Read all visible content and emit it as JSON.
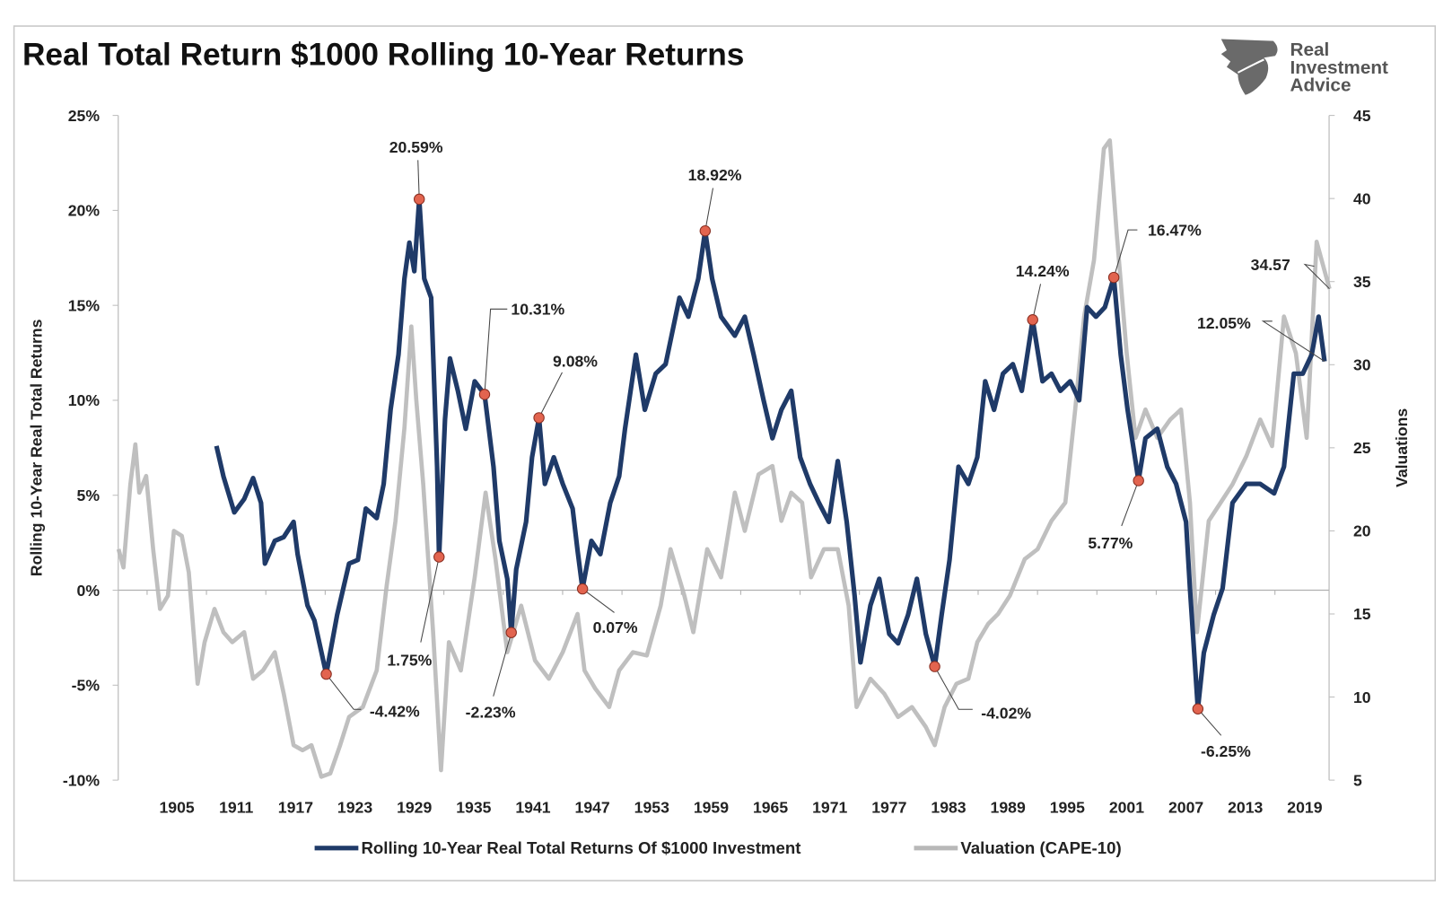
{
  "chart_data": {
    "type": "line",
    "title": "Real Total Return $1000 Rolling 10-Year Returns",
    "logo_text": [
      "Real",
      "Investment",
      "Advice"
    ],
    "ylabel": "Rolling 10-Year Real Total Returns",
    "y2label": "Valuations",
    "ylim": [
      -10,
      25
    ],
    "y2lim": [
      5,
      45
    ],
    "xlim": [
      1899,
      2021.5
    ],
    "y_ticks": [
      "25%",
      "20%",
      "15%",
      "10%",
      "5%",
      "0%",
      "-5%",
      "-10%"
    ],
    "y_tick_values": [
      25,
      20,
      15,
      10,
      5,
      0,
      -5,
      -10
    ],
    "y2_ticks": [
      "45",
      "40",
      "35",
      "30",
      "25",
      "20",
      "15",
      "10",
      "5"
    ],
    "y2_tick_values": [
      45,
      40,
      35,
      30,
      25,
      20,
      15,
      10,
      5
    ],
    "x_ticks": [
      "1905",
      "1911",
      "1917",
      "1923",
      "1929",
      "1935",
      "1941",
      "1947",
      "1953",
      "1959",
      "1965",
      "1971",
      "1977",
      "1983",
      "1989",
      "1995",
      "2001",
      "2007",
      "2013",
      "2019"
    ],
    "grid": false,
    "legend_position": "bottom",
    "series": [
      {
        "name": "Rolling 10-Year Real Total Returns Of $1000 Investment",
        "axis": "left",
        "color": "#1f3a68",
        "points": [
          [
            1909.0,
            7.6
          ],
          [
            1909.7,
            6.0
          ],
          [
            1910.8,
            4.1
          ],
          [
            1911.8,
            4.8
          ],
          [
            1912.7,
            5.9
          ],
          [
            1913.5,
            4.6
          ],
          [
            1913.9,
            1.4
          ],
          [
            1914.9,
            2.6
          ],
          [
            1915.8,
            2.8
          ],
          [
            1916.8,
            3.6
          ],
          [
            1917.2,
            1.9
          ],
          [
            1918.2,
            -0.8
          ],
          [
            1918.9,
            -1.6
          ],
          [
            1920.1,
            -4.42
          ],
          [
            1921.2,
            -1.3
          ],
          [
            1922.4,
            1.4
          ],
          [
            1923.3,
            1.6
          ],
          [
            1924.1,
            4.3
          ],
          [
            1925.2,
            3.8
          ],
          [
            1925.9,
            5.6
          ],
          [
            1926.6,
            9.5
          ],
          [
            1927.4,
            12.4
          ],
          [
            1928.0,
            16.4
          ],
          [
            1928.5,
            18.3
          ],
          [
            1929.0,
            16.8
          ],
          [
            1929.5,
            20.59
          ],
          [
            1930.0,
            16.4
          ],
          [
            1930.7,
            15.4
          ],
          [
            1931.3,
            6.5
          ],
          [
            1931.5,
            1.75
          ],
          [
            1932.1,
            9.0
          ],
          [
            1932.6,
            12.2
          ],
          [
            1933.4,
            10.5
          ],
          [
            1934.2,
            8.5
          ],
          [
            1935.1,
            11.0
          ],
          [
            1936.1,
            10.31
          ],
          [
            1937.0,
            6.5
          ],
          [
            1937.6,
            2.6
          ],
          [
            1938.4,
            0.6
          ],
          [
            1938.8,
            -2.23
          ],
          [
            1939.3,
            1.1
          ],
          [
            1940.3,
            3.6
          ],
          [
            1940.9,
            7.0
          ],
          [
            1941.6,
            9.08
          ],
          [
            1942.2,
            5.6
          ],
          [
            1943.1,
            7.0
          ],
          [
            1944.0,
            5.6
          ],
          [
            1945.0,
            4.3
          ],
          [
            1945.5,
            2.1
          ],
          [
            1946.0,
            0.07
          ],
          [
            1946.9,
            2.6
          ],
          [
            1947.8,
            1.9
          ],
          [
            1948.8,
            4.6
          ],
          [
            1949.7,
            6.0
          ],
          [
            1950.3,
            8.5
          ],
          [
            1951.4,
            12.4
          ],
          [
            1952.3,
            9.5
          ],
          [
            1953.4,
            11.4
          ],
          [
            1954.4,
            11.9
          ],
          [
            1955.0,
            13.4
          ],
          [
            1955.8,
            15.4
          ],
          [
            1956.7,
            14.4
          ],
          [
            1957.7,
            16.4
          ],
          [
            1958.4,
            18.92
          ],
          [
            1959.1,
            16.4
          ],
          [
            1960.0,
            14.4
          ],
          [
            1961.4,
            13.4
          ],
          [
            1962.4,
            14.4
          ],
          [
            1963.3,
            12.4
          ],
          [
            1964.3,
            10.0
          ],
          [
            1965.2,
            8.0
          ],
          [
            1966.1,
            9.5
          ],
          [
            1967.1,
            10.5
          ],
          [
            1968.0,
            7.0
          ],
          [
            1969.0,
            5.6
          ],
          [
            1969.9,
            4.6
          ],
          [
            1970.9,
            3.6
          ],
          [
            1971.8,
            6.8
          ],
          [
            1972.7,
            3.6
          ],
          [
            1973.5,
            -0.3
          ],
          [
            1974.1,
            -3.8
          ],
          [
            1975.1,
            -0.8
          ],
          [
            1976.0,
            0.6
          ],
          [
            1977.0,
            -2.3
          ],
          [
            1977.9,
            -2.8
          ],
          [
            1978.9,
            -1.3
          ],
          [
            1979.8,
            0.6
          ],
          [
            1980.7,
            -2.3
          ],
          [
            1981.6,
            -4.02
          ],
          [
            1982.3,
            -1.3
          ],
          [
            1983.1,
            1.6
          ],
          [
            1984.0,
            6.5
          ],
          [
            1985.0,
            5.6
          ],
          [
            1985.9,
            7.0
          ],
          [
            1986.7,
            11.0
          ],
          [
            1987.6,
            9.5
          ],
          [
            1988.5,
            11.4
          ],
          [
            1989.5,
            11.9
          ],
          [
            1990.4,
            10.5
          ],
          [
            1991.5,
            14.24
          ],
          [
            1992.5,
            11.0
          ],
          [
            1993.4,
            11.4
          ],
          [
            1994.3,
            10.5
          ],
          [
            1995.3,
            11.0
          ],
          [
            1996.2,
            10.0
          ],
          [
            1997.0,
            14.9
          ],
          [
            1997.9,
            14.4
          ],
          [
            1998.8,
            14.9
          ],
          [
            1999.7,
            16.47
          ],
          [
            2000.4,
            12.4
          ],
          [
            2001.1,
            9.5
          ],
          [
            2002.2,
            5.77
          ],
          [
            2002.9,
            8.0
          ],
          [
            2004.1,
            8.5
          ],
          [
            2005.1,
            6.5
          ],
          [
            2006.0,
            5.6
          ],
          [
            2007.0,
            3.6
          ],
          [
            2007.4,
            0.1
          ],
          [
            2008.2,
            -6.25
          ],
          [
            2008.8,
            -3.3
          ],
          [
            2009.8,
            -1.3
          ],
          [
            2010.7,
            0.1
          ],
          [
            2011.7,
            4.6
          ],
          [
            2013.1,
            5.6
          ],
          [
            2014.5,
            5.6
          ],
          [
            2015.9,
            5.1
          ],
          [
            2016.9,
            6.5
          ],
          [
            2017.9,
            11.4
          ],
          [
            2018.8,
            11.4
          ],
          [
            2019.7,
            12.4
          ],
          [
            2020.4,
            14.4
          ],
          [
            2021.0,
            12.05
          ]
        ]
      },
      {
        "name": "Valuation (CAPE-10)",
        "axis": "right",
        "color": "#b8b8b8",
        "points": [
          [
            1899.1,
            18.9
          ],
          [
            1899.6,
            17.8
          ],
          [
            1900.3,
            22.8
          ],
          [
            1900.8,
            25.2
          ],
          [
            1901.2,
            22.3
          ],
          [
            1901.9,
            23.3
          ],
          [
            1902.6,
            18.9
          ],
          [
            1903.3,
            15.3
          ],
          [
            1904.1,
            16.1
          ],
          [
            1904.7,
            20.0
          ],
          [
            1905.5,
            19.7
          ],
          [
            1906.2,
            17.5
          ],
          [
            1907.1,
            10.8
          ],
          [
            1907.8,
            13.3
          ],
          [
            1908.8,
            15.3
          ],
          [
            1909.7,
            13.9
          ],
          [
            1910.6,
            13.3
          ],
          [
            1911.8,
            13.9
          ],
          [
            1912.7,
            11.1
          ],
          [
            1913.7,
            11.6
          ],
          [
            1914.9,
            12.7
          ],
          [
            1915.8,
            10.2
          ],
          [
            1916.8,
            7.1
          ],
          [
            1917.7,
            6.8
          ],
          [
            1918.6,
            7.1
          ],
          [
            1919.6,
            5.2
          ],
          [
            1920.5,
            5.4
          ],
          [
            1921.5,
            7.1
          ],
          [
            1922.4,
            8.8
          ],
          [
            1923.8,
            9.4
          ],
          [
            1925.2,
            11.6
          ],
          [
            1926.2,
            16.7
          ],
          [
            1927.1,
            20.6
          ],
          [
            1928.0,
            26.2
          ],
          [
            1928.7,
            32.3
          ],
          [
            1929.2,
            27.9
          ],
          [
            1929.9,
            22.8
          ],
          [
            1930.9,
            13.9
          ],
          [
            1931.7,
            5.6
          ],
          [
            1932.5,
            13.3
          ],
          [
            1933.7,
            11.6
          ],
          [
            1935.1,
            17.2
          ],
          [
            1936.2,
            22.3
          ],
          [
            1937.2,
            18.3
          ],
          [
            1938.4,
            12.7
          ],
          [
            1939.8,
            15.5
          ],
          [
            1941.2,
            12.2
          ],
          [
            1942.6,
            11.1
          ],
          [
            1944.0,
            12.7
          ],
          [
            1945.5,
            15.0
          ],
          [
            1946.2,
            11.6
          ],
          [
            1947.3,
            10.5
          ],
          [
            1948.7,
            9.4
          ],
          [
            1949.7,
            11.6
          ],
          [
            1951.1,
            12.7
          ],
          [
            1952.5,
            12.5
          ],
          [
            1953.9,
            15.5
          ],
          [
            1954.9,
            18.9
          ],
          [
            1956.3,
            16.1
          ],
          [
            1957.2,
            13.9
          ],
          [
            1958.6,
            18.9
          ],
          [
            1960.0,
            17.2
          ],
          [
            1961.4,
            22.3
          ],
          [
            1962.4,
            20.0
          ],
          [
            1963.8,
            23.4
          ],
          [
            1965.2,
            23.9
          ],
          [
            1966.1,
            20.6
          ],
          [
            1967.1,
            22.3
          ],
          [
            1968.2,
            21.7
          ],
          [
            1969.1,
            17.2
          ],
          [
            1970.4,
            18.9
          ],
          [
            1971.8,
            18.9
          ],
          [
            1972.9,
            15.5
          ],
          [
            1973.7,
            9.4
          ],
          [
            1975.1,
            11.1
          ],
          [
            1976.5,
            10.2
          ],
          [
            1977.9,
            8.8
          ],
          [
            1979.3,
            9.4
          ],
          [
            1980.7,
            8.2
          ],
          [
            1981.6,
            7.1
          ],
          [
            1982.6,
            9.4
          ],
          [
            1983.8,
            10.8
          ],
          [
            1985.0,
            11.1
          ],
          [
            1985.9,
            13.3
          ],
          [
            1987.0,
            14.4
          ],
          [
            1988.0,
            15.0
          ],
          [
            1989.2,
            16.1
          ],
          [
            1990.7,
            18.3
          ],
          [
            1992.0,
            18.9
          ],
          [
            1993.4,
            20.6
          ],
          [
            1994.8,
            21.7
          ],
          [
            1995.8,
            27.3
          ],
          [
            1996.7,
            32.9
          ],
          [
            1997.7,
            36.3
          ],
          [
            1998.7,
            43.0
          ],
          [
            1999.3,
            43.5
          ],
          [
            2000.0,
            37.9
          ],
          [
            2001.0,
            30.7
          ],
          [
            2001.9,
            25.6
          ],
          [
            2002.9,
            27.3
          ],
          [
            2004.1,
            25.6
          ],
          [
            2005.4,
            26.7
          ],
          [
            2006.5,
            27.3
          ],
          [
            2007.4,
            21.7
          ],
          [
            2008.1,
            13.9
          ],
          [
            2009.3,
            20.6
          ],
          [
            2010.5,
            21.7
          ],
          [
            2011.7,
            22.8
          ],
          [
            2013.1,
            24.5
          ],
          [
            2014.5,
            26.7
          ],
          [
            2015.7,
            25.1
          ],
          [
            2016.9,
            32.9
          ],
          [
            2018.1,
            30.7
          ],
          [
            2019.2,
            25.6
          ],
          [
            2020.2,
            37.4
          ],
          [
            2021.5,
            34.57
          ]
        ]
      }
    ],
    "annotations": [
      {
        "label": "20.59%",
        "x": 1929.5,
        "y": 20.59,
        "axis": "left",
        "marker": true
      },
      {
        "label": "18.92%",
        "x": 1958.4,
        "y": 18.92,
        "axis": "left",
        "marker": true
      },
      {
        "label": "10.31%",
        "x": 1936.1,
        "y": 10.31,
        "axis": "left",
        "marker": true
      },
      {
        "label": "9.08%",
        "x": 1941.6,
        "y": 9.08,
        "axis": "left",
        "marker": true
      },
      {
        "label": "1.75%",
        "x": 1931.5,
        "y": 1.75,
        "axis": "left",
        "marker": true
      },
      {
        "label": "-4.42%",
        "x": 1920.1,
        "y": -4.42,
        "axis": "left",
        "marker": true
      },
      {
        "label": "-2.23%",
        "x": 1938.8,
        "y": -2.23,
        "axis": "left",
        "marker": true
      },
      {
        "label": "0.07%",
        "x": 1946.0,
        "y": 0.07,
        "axis": "left",
        "marker": true
      },
      {
        "label": "-4.02%",
        "x": 1981.6,
        "y": -4.02,
        "axis": "left",
        "marker": true
      },
      {
        "label": "14.24%",
        "x": 1991.5,
        "y": 14.24,
        "axis": "left",
        "marker": true
      },
      {
        "label": "16.47%",
        "x": 1999.7,
        "y": 16.47,
        "axis": "left",
        "marker": true
      },
      {
        "label": "5.77%",
        "x": 2002.2,
        "y": 5.77,
        "axis": "left",
        "marker": true
      },
      {
        "label": "-6.25%",
        "x": 2008.2,
        "y": -6.25,
        "axis": "left",
        "marker": true
      },
      {
        "label": "12.05%",
        "x": 2021.0,
        "y": 12.05,
        "axis": "left",
        "marker": false
      },
      {
        "label": "34.57",
        "x": 2021.5,
        "y": 34.57,
        "axis": "right",
        "marker": false
      }
    ],
    "marker_color": "#e2644f"
  }
}
